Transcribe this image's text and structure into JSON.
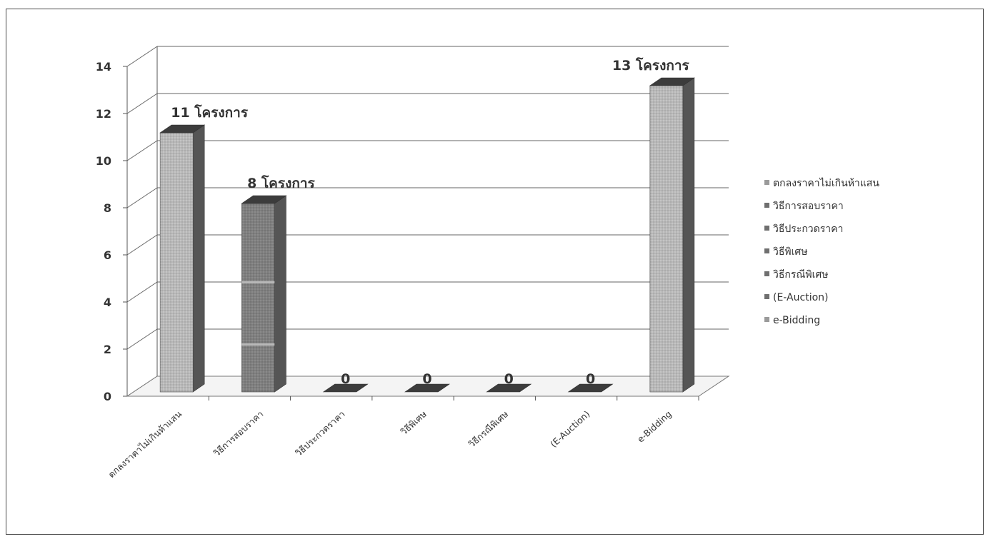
{
  "chart_data": {
    "type": "bar",
    "style": "3d-column",
    "categories": [
      "ตกลงราคาไม่เกินห้าแสน",
      "วิธีการสอบราคา",
      "วิธีประกวดราคา",
      "วิธีพิเศษ",
      "วิธีกรณีพิเศษ",
      "(E-Auction)",
      "e-Bidding"
    ],
    "values": [
      11,
      8,
      0,
      0,
      0,
      0,
      13
    ],
    "data_labels": [
      "11 โครงการ",
      "8 โครงการ",
      "0",
      "0",
      "0",
      "0",
      "13 โครงการ"
    ],
    "yticks": [
      "0",
      "2",
      "4",
      "6",
      "8",
      "10",
      "12",
      "14"
    ],
    "ylim": [
      0,
      14
    ],
    "grid": true,
    "legend_position": "right",
    "legend": [
      "ตกลงราคาไม่เกินห้าแสน",
      "วิธีการสอบราคา",
      "วิธีประกวดราคา",
      "วิธีพิเศษ",
      "วิธีกรณีพิเศษ",
      "(E-Auction)",
      "e-Bidding"
    ],
    "colors": {
      "bar_light": "#b8b8b8",
      "bar_mid": "#7f7f7f",
      "bar_side": "#555555",
      "bar_top": "#3c3c3c",
      "grid": "#666666"
    },
    "title": "",
    "xlabel": "",
    "ylabel": ""
  }
}
